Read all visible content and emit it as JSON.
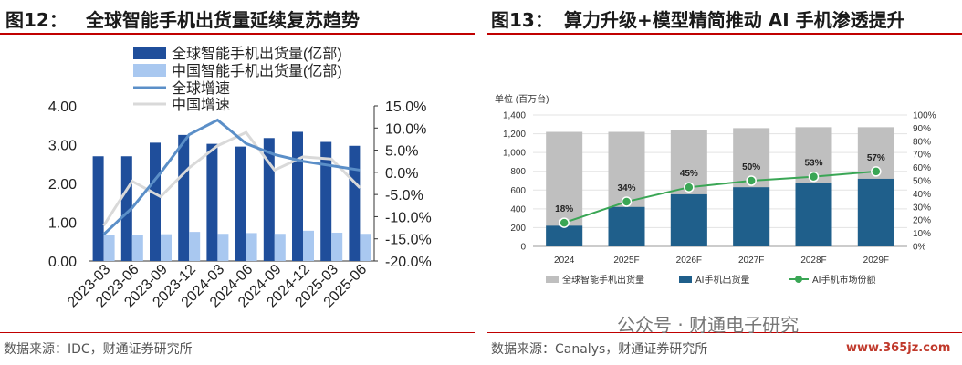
{
  "left": {
    "fig_no": "图12：",
    "title": "全球智能手机出货量延续复苏趋势",
    "source": "数据来源：IDC，财通证券研究所"
  },
  "right": {
    "fig_no": "图13：",
    "title": "算力升级+模型精简推动 AI 手机渗透提升",
    "source": "数据来源：Canalys，财通证券研究所"
  },
  "watermark": "公众号 · 财通电子研究",
  "site_mark": "www.365jz.com",
  "chart_data": [
    {
      "type": "bar",
      "categories": [
        "2023-03",
        "2023-06",
        "2023-09",
        "2023-12",
        "2024-03",
        "2024-06",
        "2024-09",
        "2024-12",
        "2025-03",
        "2025-06"
      ],
      "series": [
        {
          "name": "全球智能手机出货量(亿部)",
          "type": "bar",
          "axis": "left",
          "color": "#1f4e9b",
          "values": [
            2.7,
            2.7,
            3.05,
            3.25,
            3.02,
            2.95,
            3.17,
            3.33,
            3.07,
            2.97
          ]
        },
        {
          "name": "中国智能手机出货量(亿部)",
          "type": "bar",
          "axis": "left",
          "color": "#a9c8f0",
          "values": [
            0.67,
            0.67,
            0.69,
            0.75,
            0.7,
            0.72,
            0.7,
            0.78,
            0.73,
            0.7
          ]
        },
        {
          "name": "全球增速",
          "type": "line",
          "axis": "right",
          "color": "#5b8fc8",
          "values": [
            -14.0,
            -8.0,
            -0.1,
            8.5,
            11.8,
            6.5,
            4.0,
            2.5,
            1.5,
            0.5
          ]
        },
        {
          "name": "中国增速",
          "type": "line",
          "axis": "right",
          "color": "#d9d9d9",
          "values": [
            -12.0,
            -2.0,
            -5.5,
            1.0,
            6.0,
            9.0,
            0.5,
            3.5,
            3.0,
            -3.5
          ]
        }
      ],
      "ylim_left": [
        0,
        4
      ],
      "yticks_left": [
        "0.00",
        "1.00",
        "2.00",
        "3.00",
        "4.00"
      ],
      "ylim_right": [
        -20,
        15
      ],
      "yticks_right": [
        "-20.0%",
        "-15.0%",
        "-10.0%",
        "-5.0%",
        "0.0%",
        "5.0%",
        "10.0%",
        "15.0%"
      ],
      "legend": "top-left",
      "grid": false
    },
    {
      "type": "bar",
      "categories": [
        "2024",
        "2025F",
        "2026F",
        "2027F",
        "2028F",
        "2029F"
      ],
      "unit_label": "单位 (百万台)",
      "series": [
        {
          "name": "全球智能手机出货量",
          "type": "bar",
          "axis": "left",
          "color": "#bfbfbf",
          "values": [
            1220,
            1220,
            1240,
            1260,
            1270,
            1270
          ]
        },
        {
          "name": "AI手机出货量",
          "type": "bar",
          "axis": "left",
          "color": "#1f5f8b",
          "values": [
            220,
            420,
            555,
            630,
            675,
            720
          ]
        },
        {
          "name": "AI手机市场份额",
          "type": "line",
          "axis": "right",
          "color": "#3aa655",
          "values": [
            18,
            34,
            45,
            50,
            53,
            57
          ],
          "labels": [
            "18%",
            "34%",
            "45%",
            "50%",
            "53%",
            "57%"
          ]
        }
      ],
      "ylim_left": [
        0,
        1400
      ],
      "yticks_left": [
        "0",
        "200",
        "400",
        "600",
        "800",
        "1,000",
        "1,200",
        "1,400"
      ],
      "ylim_right": [
        0,
        100
      ],
      "yticks_right": [
        "0%",
        "10%",
        "20%",
        "30%",
        "40%",
        "50%",
        "60%",
        "70%",
        "80%",
        "90%",
        "100%"
      ],
      "legend": "bottom",
      "grid": true
    }
  ]
}
